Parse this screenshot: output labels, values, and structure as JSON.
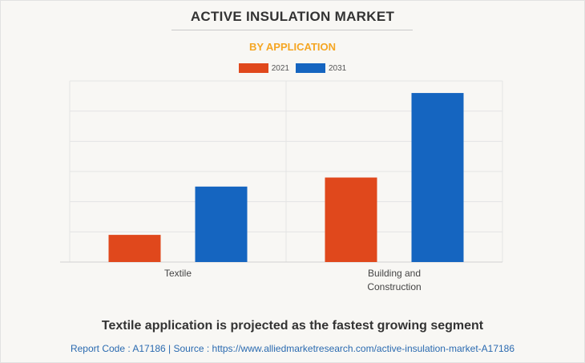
{
  "header": {
    "title": "ACTIVE INSULATION MARKET",
    "subtitle": "BY APPLICATION"
  },
  "colors": {
    "series_2021": "#e0481c",
    "series_2031": "#1565c0",
    "subtitle": "#f5a623",
    "source": "#2a6ab0"
  },
  "chart_data": {
    "type": "bar",
    "title": "",
    "xlabel": "",
    "ylabel": "",
    "categories": [
      "Textile",
      "Building and\nConstruction"
    ],
    "series": [
      {
        "name": "2021",
        "values": [
          0.9,
          2.8
        ]
      },
      {
        "name": "2031",
        "values": [
          2.5,
          5.6
        ]
      }
    ],
    "ylim": [
      0,
      6
    ],
    "grid": true,
    "legend_position": "top-center"
  },
  "footer": {
    "caption": "Textile application is projected as the fastest growing segment",
    "source_label": "Report Code : A17186  |  Source : https://www.alliedmarketresearch.com/active-insulation-market-A17186"
  }
}
